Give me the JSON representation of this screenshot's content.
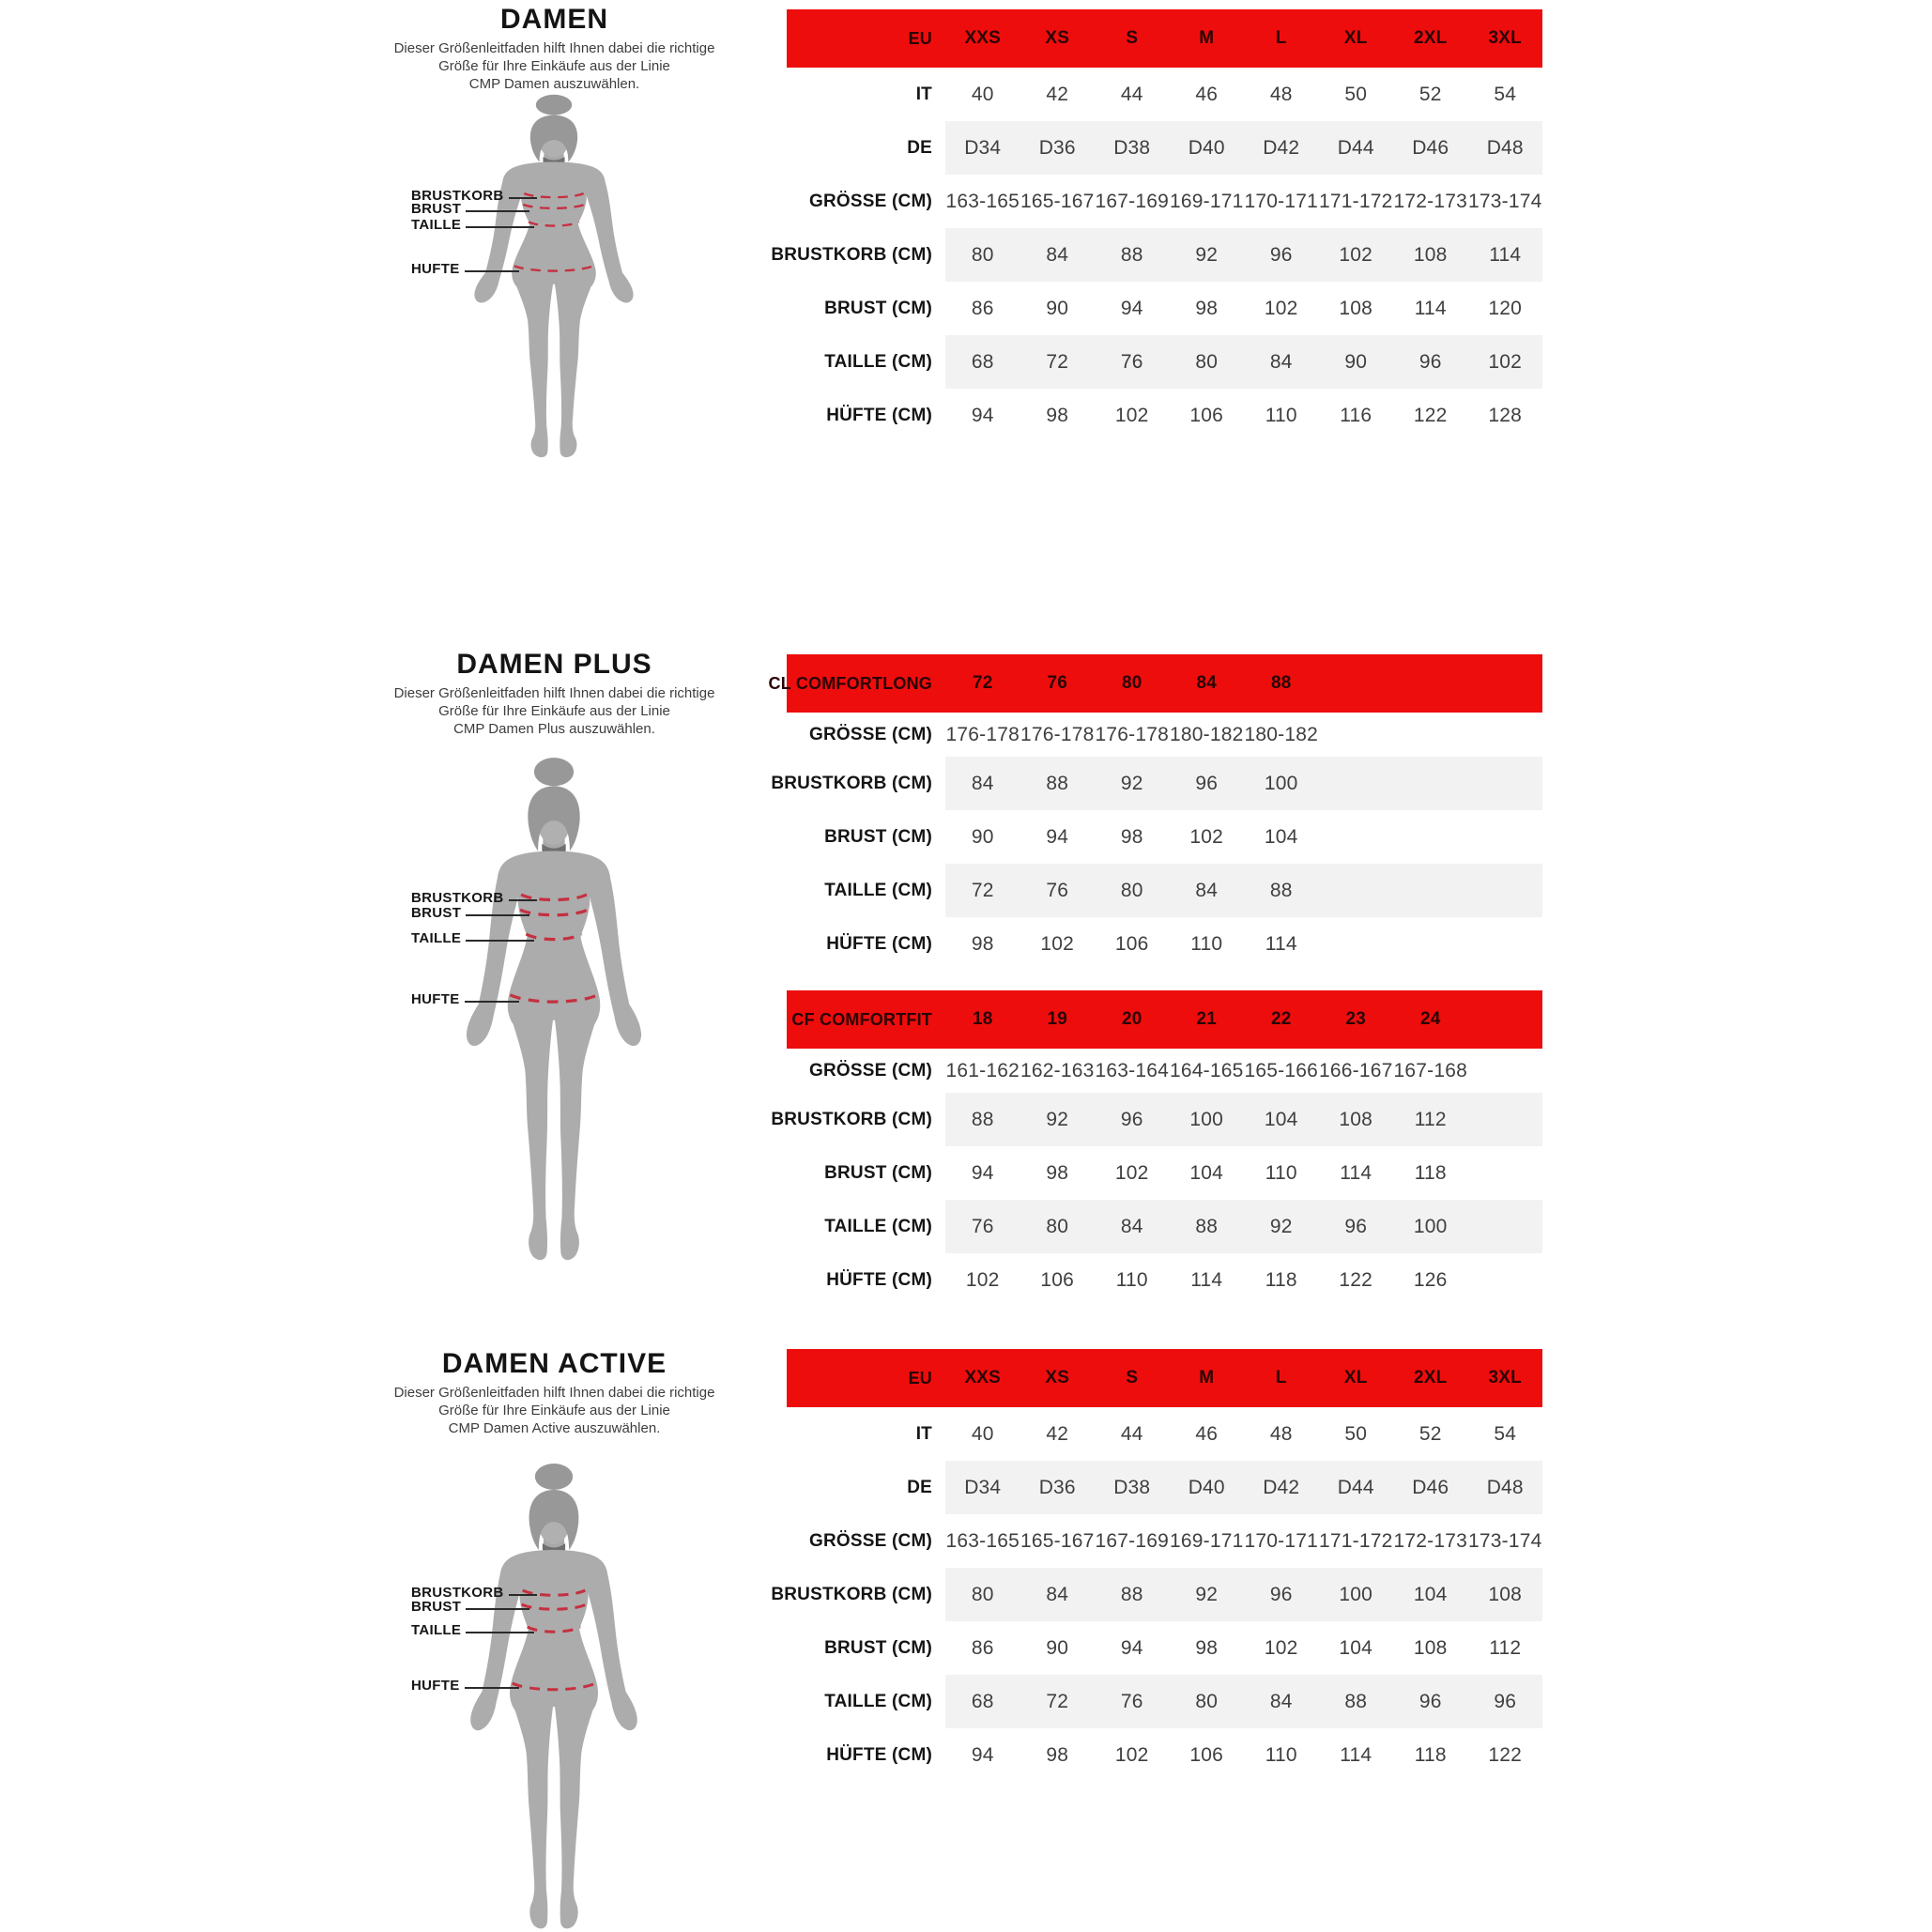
{
  "colors": {
    "accent_red": "#ee0d0d",
    "row_stripe": "#f2f2f2",
    "figure_gray": "#acacac",
    "measure_dash_red": "#c53040"
  },
  "sections": [
    {
      "title": "DAMEN",
      "description": "Dieser Größenleitfaden hilft Ihnen dabei die richtige\nGröße für Ihre Einkäufe aus der Linie\nCMP Damen auszuwählen.",
      "figure_labels": [
        "BRUSTKORB",
        "BRUST",
        "TAILLE",
        "HUFTE"
      ],
      "tables": [
        {
          "header": {
            "label": "EU",
            "values": [
              "XXS",
              "XS",
              "S",
              "M",
              "L",
              "XL",
              "2XL",
              "3XL"
            ]
          },
          "rows": [
            {
              "label": "IT",
              "values": [
                "40",
                "42",
                "44",
                "46",
                "48",
                "50",
                "52",
                "54"
              ]
            },
            {
              "label": "DE",
              "values": [
                "D34",
                "D36",
                "D38",
                "D40",
                "D42",
                "D44",
                "D46",
                "D48"
              ]
            },
            {
              "label": "GRÖSSE (CM)",
              "values": [
                "163-165",
                "165-167",
                "167-169",
                "169-171",
                "170-171",
                "171-172",
                "172-173",
                "173-174"
              ]
            },
            {
              "label": "BRUSTKORB (CM)",
              "values": [
                "80",
                "84",
                "88",
                "92",
                "96",
                "102",
                "108",
                "114"
              ]
            },
            {
              "label": "BRUST (CM)",
              "values": [
                "86",
                "90",
                "94",
                "98",
                "102",
                "108",
                "114",
                "120"
              ]
            },
            {
              "label": "TAILLE (CM)",
              "values": [
                "68",
                "72",
                "76",
                "80",
                "84",
                "90",
                "96",
                "102"
              ]
            },
            {
              "label": "HÜFTE (CM)",
              "values": [
                "94",
                "98",
                "102",
                "106",
                "110",
                "116",
                "122",
                "128"
              ]
            }
          ]
        }
      ]
    },
    {
      "title": "DAMEN PLUS",
      "description": "Dieser Größenleitfaden hilft Ihnen dabei die richtige\nGröße für Ihre Einkäufe aus der Linie\nCMP Damen Plus auszuwählen.",
      "figure_labels": [
        "BRUSTKORB",
        "BRUST",
        "TAILLE",
        "HUFTE"
      ],
      "tables": [
        {
          "header": {
            "label": "CL COMFORTLONG",
            "values": [
              "72",
              "76",
              "80",
              "84",
              "88"
            ]
          },
          "rows": [
            {
              "label": "GRÖSSE (CM)",
              "values": [
                "176-178",
                "176-178",
                "176-178",
                "180-182",
                "180-182"
              ]
            },
            {
              "label": "BRUSTKORB (CM)",
              "values": [
                "84",
                "88",
                "92",
                "96",
                "100"
              ]
            },
            {
              "label": "BRUST (CM)",
              "values": [
                "90",
                "94",
                "98",
                "102",
                "104"
              ]
            },
            {
              "label": "TAILLE (CM)",
              "values": [
                "72",
                "76",
                "80",
                "84",
                "88"
              ]
            },
            {
              "label": "HÜFTE (CM)",
              "values": [
                "98",
                "102",
                "106",
                "110",
                "114"
              ]
            }
          ]
        },
        {
          "header": {
            "label": "CF COMFORTFIT",
            "values": [
              "18",
              "19",
              "20",
              "21",
              "22",
              "23",
              "24"
            ]
          },
          "rows": [
            {
              "label": "GRÖSSE (CM)",
              "values": [
                "161-162",
                "162-163",
                "163-164",
                "164-165",
                "165-166",
                "166-167",
                "167-168"
              ]
            },
            {
              "label": "BRUSTKORB (CM)",
              "values": [
                "88",
                "92",
                "96",
                "100",
                "104",
                "108",
                "112"
              ]
            },
            {
              "label": "BRUST (CM)",
              "values": [
                "94",
                "98",
                "102",
                "104",
                "110",
                "114",
                "118"
              ]
            },
            {
              "label": "TAILLE (CM)",
              "values": [
                "76",
                "80",
                "84",
                "88",
                "92",
                "96",
                "100"
              ]
            },
            {
              "label": "HÜFTE (CM)",
              "values": [
                "102",
                "106",
                "110",
                "114",
                "118",
                "122",
                "126"
              ]
            }
          ]
        }
      ]
    },
    {
      "title": "DAMEN ACTIVE",
      "description": "Dieser Größenleitfaden hilft Ihnen dabei die richtige\nGröße für Ihre Einkäufe aus der Linie\nCMP Damen Active auszuwählen.",
      "figure_labels": [
        "BRUSTKORB",
        "BRUST",
        "TAILLE",
        "HUFTE"
      ],
      "tables": [
        {
          "header": {
            "label": "EU",
            "values": [
              "XXS",
              "XS",
              "S",
              "M",
              "L",
              "XL",
              "2XL",
              "3XL"
            ]
          },
          "rows": [
            {
              "label": "IT",
              "values": [
                "40",
                "42",
                "44",
                "46",
                "48",
                "50",
                "52",
                "54"
              ]
            },
            {
              "label": "DE",
              "values": [
                "D34",
                "D36",
                "D38",
                "D40",
                "D42",
                "D44",
                "D46",
                "D48"
              ]
            },
            {
              "label": "GRÖSSE (CM)",
              "values": [
                "163-165",
                "165-167",
                "167-169",
                "169-171",
                "170-171",
                "171-172",
                "172-173",
                "173-174"
              ]
            },
            {
              "label": "BRUSTKORB (CM)",
              "values": [
                "80",
                "84",
                "88",
                "92",
                "96",
                "100",
                "104",
                "108"
              ]
            },
            {
              "label": "BRUST (CM)",
              "values": [
                "86",
                "90",
                "94",
                "98",
                "102",
                "104",
                "108",
                "112"
              ]
            },
            {
              "label": "TAILLE (CM)",
              "values": [
                "68",
                "72",
                "76",
                "80",
                "84",
                "88",
                "96",
                "96"
              ]
            },
            {
              "label": "HÜFTE (CM)",
              "values": [
                "94",
                "98",
                "102",
                "106",
                "110",
                "114",
                "118",
                "122"
              ]
            }
          ]
        }
      ]
    }
  ]
}
